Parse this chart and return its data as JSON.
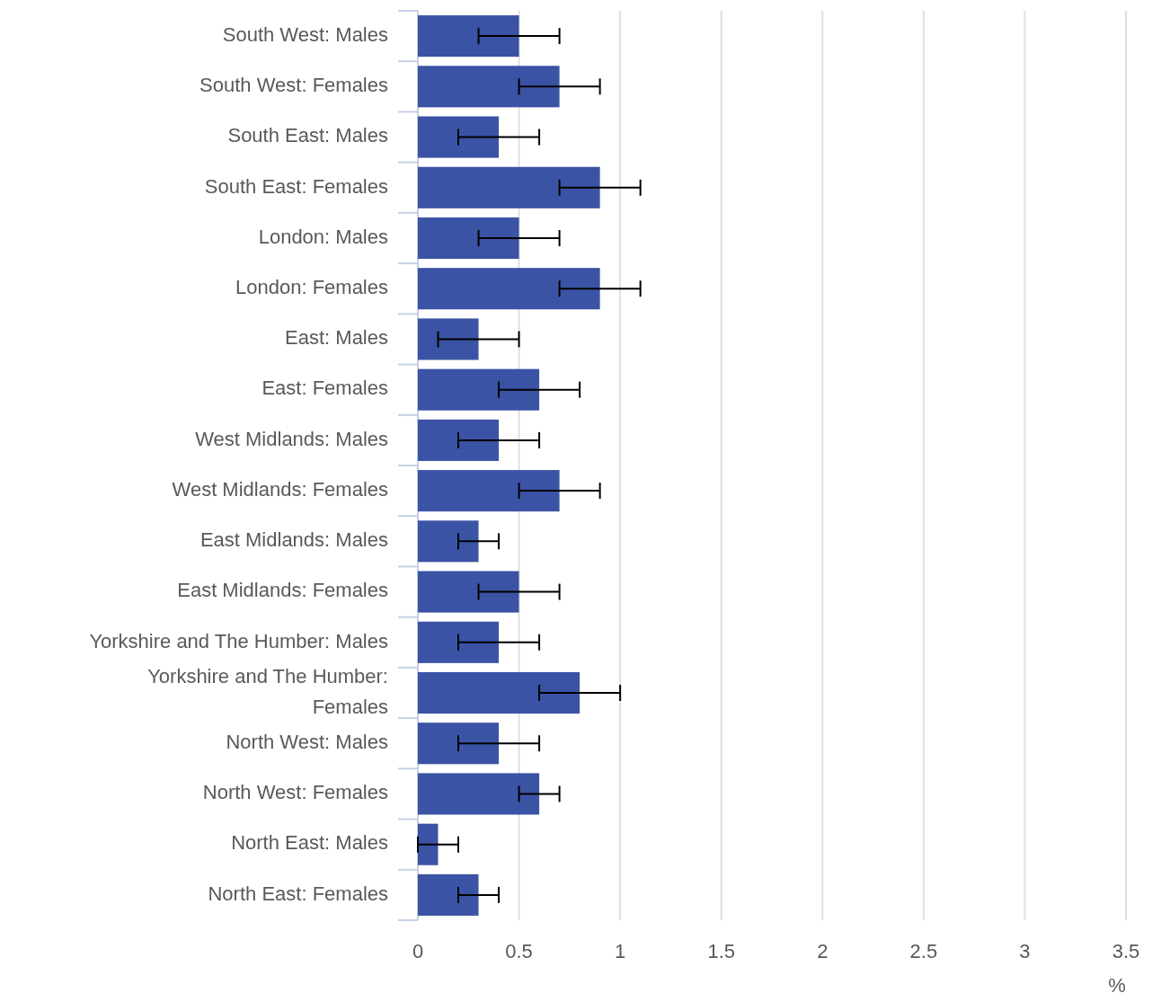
{
  "chart_data": {
    "type": "bar",
    "orientation": "horizontal",
    "xlabel": "%",
    "categories": [
      "South West: Males",
      "South West: Females",
      "South East: Males",
      "South East: Females",
      "London: Males",
      "London: Females",
      "East: Males",
      "East: Females",
      "West Midlands: Males",
      "West Midlands: Females",
      "East Midlands: Males",
      "East Midlands: Females",
      "Yorkshire and The Humber: Males",
      "Yorkshire and The Humber: Females",
      "North West: Males",
      "North West: Females",
      "North East: Males",
      "North East: Females"
    ],
    "values": [
      0.5,
      0.7,
      0.4,
      0.9,
      0.5,
      0.9,
      0.3,
      0.6,
      0.4,
      0.7,
      0.3,
      0.5,
      0.4,
      0.8,
      0.4,
      0.6,
      0.1,
      0.3
    ],
    "errors": [
      [
        0.3,
        0.7
      ],
      [
        0.5,
        0.9
      ],
      [
        0.2,
        0.6
      ],
      [
        0.7,
        1.1
      ],
      [
        0.3,
        0.7
      ],
      [
        0.7,
        1.1
      ],
      [
        0.1,
        0.5
      ],
      [
        0.4,
        0.8
      ],
      [
        0.2,
        0.6
      ],
      [
        0.5,
        0.9
      ],
      [
        0.2,
        0.4
      ],
      [
        0.3,
        0.7
      ],
      [
        0.2,
        0.6
      ],
      [
        0.6,
        1.0
      ],
      [
        0.2,
        0.6
      ],
      [
        0.5,
        0.7
      ],
      [
        0.0,
        0.2
      ],
      [
        0.2,
        0.4
      ]
    ],
    "color": "#3a53a4",
    "xlim": [
      0,
      3.5
    ],
    "xticks": [
      0,
      0.5,
      1,
      1.5,
      2,
      2.5,
      3,
      3.5
    ],
    "grid": "x"
  }
}
